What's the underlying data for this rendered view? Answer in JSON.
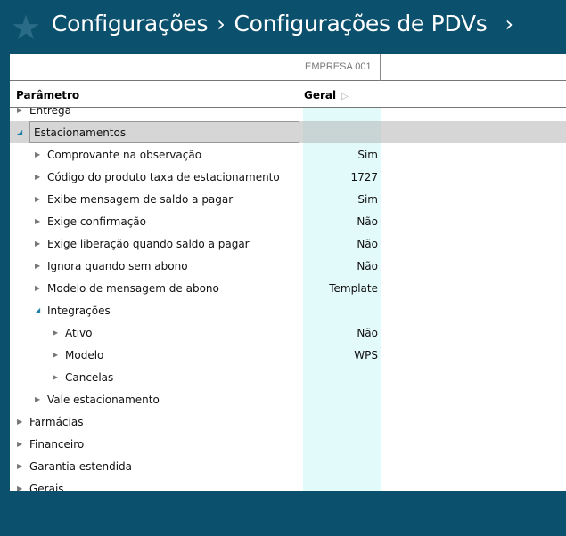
{
  "header": {
    "crumbs": [
      "Configurações",
      "Configurações de PDVs"
    ]
  },
  "grid": {
    "company": "EMPRESA 001",
    "param_header": "Parâmetro",
    "col_header": "Geral",
    "rows": [
      {
        "label": "Entrega",
        "level": 0,
        "expanded": false,
        "value": ""
      },
      {
        "label": "Estacionamentos",
        "level": 0,
        "expanded": true,
        "value": "",
        "selected": true
      },
      {
        "label": "Comprovante na observação",
        "level": 1,
        "expanded": false,
        "value": "Sim"
      },
      {
        "label": "Código do produto taxa de estacionamento",
        "level": 1,
        "expanded": false,
        "value": "1727"
      },
      {
        "label": "Exibe mensagem de saldo a pagar",
        "level": 1,
        "expanded": false,
        "value": "Sim"
      },
      {
        "label": "Exige confirmação",
        "level": 1,
        "expanded": false,
        "value": "Não"
      },
      {
        "label": "Exige liberação quando saldo a pagar",
        "level": 1,
        "expanded": false,
        "value": "Não"
      },
      {
        "label": "Ignora quando sem abono",
        "level": 1,
        "expanded": false,
        "value": "Não"
      },
      {
        "label": "Modelo de mensagem de abono",
        "level": 1,
        "expanded": false,
        "value": "Template"
      },
      {
        "label": "Integrações",
        "level": 1,
        "expanded": true,
        "value": ""
      },
      {
        "label": "Ativo",
        "level": 2,
        "expanded": false,
        "value": "Não"
      },
      {
        "label": "Modelo",
        "level": 2,
        "expanded": false,
        "value": "WPS"
      },
      {
        "label": "Cancelas",
        "level": 2,
        "expanded": false,
        "value": ""
      },
      {
        "label": "Vale estacionamento",
        "level": 1,
        "expanded": false,
        "value": ""
      },
      {
        "label": "Farmácias",
        "level": 0,
        "expanded": false,
        "value": ""
      },
      {
        "label": "Financeiro",
        "level": 0,
        "expanded": false,
        "value": ""
      },
      {
        "label": "Garantia estendida",
        "level": 0,
        "expanded": false,
        "value": ""
      },
      {
        "label": "Gerais",
        "level": 0,
        "expanded": false,
        "value": ""
      }
    ]
  }
}
